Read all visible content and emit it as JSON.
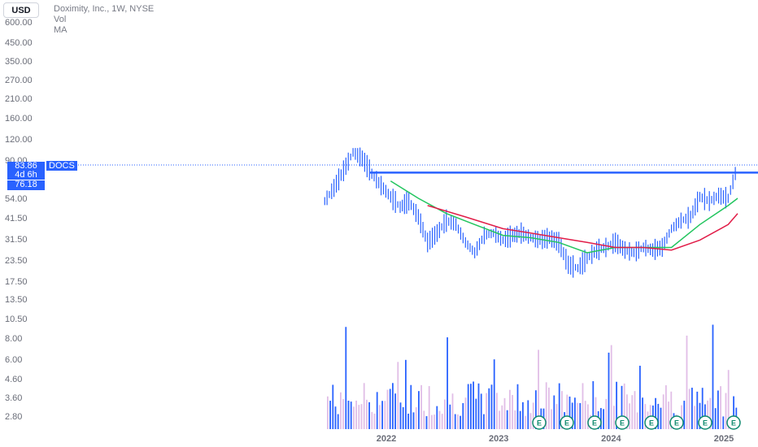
{
  "currency": "USD",
  "legend": {
    "title": "Doximity, Inc., 1W, NYSE",
    "vol": "Vol",
    "ma": "MA"
  },
  "price_tags": {
    "last_price": "83.86",
    "countdown": "4d 6h",
    "ma_price": "76.18",
    "symbol": "DOCS"
  },
  "colors": {
    "accent": "#2962ff",
    "up": "#2962ff",
    "down": "#2962ff",
    "ma_fast": "#22c55e",
    "ma_slow": "#e11d48",
    "volume_up": "#2962ff",
    "volume_down": "#e1bee7",
    "earnings_badge": "#0f8a6e"
  },
  "chart_data": {
    "type": "line",
    "title": "Doximity, Inc., 1W, NYSE",
    "y_scale": "log",
    "y_ticks": [
      "600.00",
      "450.00",
      "350.00",
      "270.00",
      "210.00",
      "160.00",
      "120.00",
      "90.00",
      "54.00",
      "41.50",
      "31.50",
      "23.50",
      "17.50",
      "13.50",
      "10.50",
      "8.00",
      "6.00",
      "4.60",
      "3.60",
      "2.80"
    ],
    "x_ticks": [
      "2022",
      "2023",
      "2024",
      "2025"
    ],
    "grid": false,
    "horizontal_line": 76.18,
    "series": [
      {
        "name": "DOCS",
        "x": [
          "2021-06",
          "2021-07",
          "2021-08",
          "2021-09",
          "2021-10",
          "2021-11",
          "2021-12",
          "2022-01",
          "2022-02",
          "2022-03",
          "2022-04",
          "2022-05",
          "2022-06",
          "2022-07",
          "2022-08",
          "2022-09",
          "2022-10",
          "2022-11",
          "2022-12",
          "2023-01",
          "2023-02",
          "2023-03",
          "2023-04",
          "2023-05",
          "2023-06",
          "2023-07",
          "2023-08",
          "2023-09",
          "2023-10",
          "2023-11",
          "2023-12",
          "2024-01",
          "2024-02",
          "2024-03",
          "2024-04",
          "2024-05",
          "2024-06",
          "2024-07",
          "2024-08",
          "2024-09",
          "2024-10",
          "2024-11",
          "2024-12",
          "2025-01",
          "2025-02"
        ],
        "values": [
          52,
          62,
          78,
          100,
          92,
          75,
          64,
          55,
          48,
          52,
          42,
          30,
          34,
          40,
          38,
          30,
          26,
          33,
          34,
          31,
          33,
          34,
          32,
          31,
          32,
          30,
          22,
          21,
          24,
          27,
          28,
          30,
          27,
          26,
          28,
          27,
          28,
          36,
          40,
          42,
          55,
          52,
          56,
          54,
          84
        ]
      },
      {
        "name": "MA fast",
        "x": [
          "2022-01",
          "2022-04",
          "2022-07",
          "2022-10",
          "2023-01",
          "2023-04",
          "2023-07",
          "2023-10",
          "2024-01",
          "2024-04",
          "2024-07",
          "2024-10",
          "2025-01",
          "2025-02"
        ],
        "values": [
          68,
          54,
          44,
          38,
          33,
          32,
          30,
          26,
          28,
          28,
          28,
          38,
          49,
          54
        ]
      },
      {
        "name": "MA slow",
        "x": [
          "2022-05",
          "2022-09",
          "2023-01",
          "2023-04",
          "2023-07",
          "2023-10",
          "2024-01",
          "2024-04",
          "2024-07",
          "2024-10",
          "2025-01",
          "2025-02"
        ],
        "values": [
          49,
          42,
          36,
          34,
          32,
          30,
          28,
          28,
          27,
          31,
          38,
          44
        ]
      }
    ],
    "volume": {
      "description": "weekly volume bars",
      "earnings_markers": 8
    }
  }
}
